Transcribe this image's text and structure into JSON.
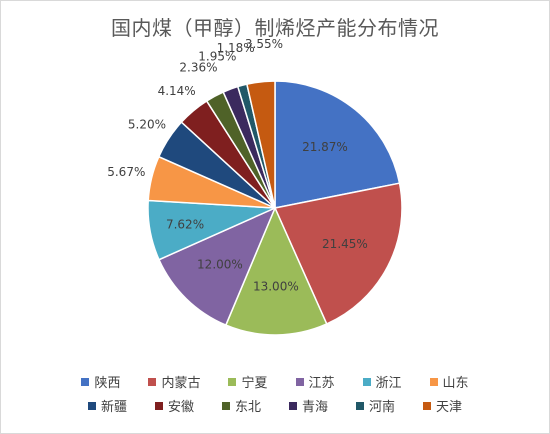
{
  "chart_data": {
    "type": "pie",
    "title": "国内煤（甲醇）制烯烃产能分布情况",
    "categories": [
      "陕西",
      "内蒙古",
      "宁夏",
      "江苏",
      "浙江",
      "山东",
      "新疆",
      "安徽",
      "东北",
      "青海",
      "河南",
      "天津"
    ],
    "values": [
      21.87,
      21.45,
      13.0,
      12.0,
      7.62,
      5.67,
      5.2,
      4.14,
      2.36,
      1.95,
      1.18,
      3.55
    ],
    "labels": [
      "21.87%",
      "21.45%",
      "13.00%",
      "12.00%",
      "7.62%",
      "5.67%",
      "5.20%",
      "4.14%",
      "2.36%",
      "1.95%",
      "1.18%",
      "3.55%"
    ],
    "colors": [
      "#4472C4",
      "#C0504D",
      "#9BBB59",
      "#8064A2",
      "#4BACC6",
      "#F79646",
      "#1F497D",
      "#7F1F1F",
      "#4F6228",
      "#3B2A5E",
      "#215868",
      "#C55A11"
    ],
    "legend_position": "bottom"
  }
}
